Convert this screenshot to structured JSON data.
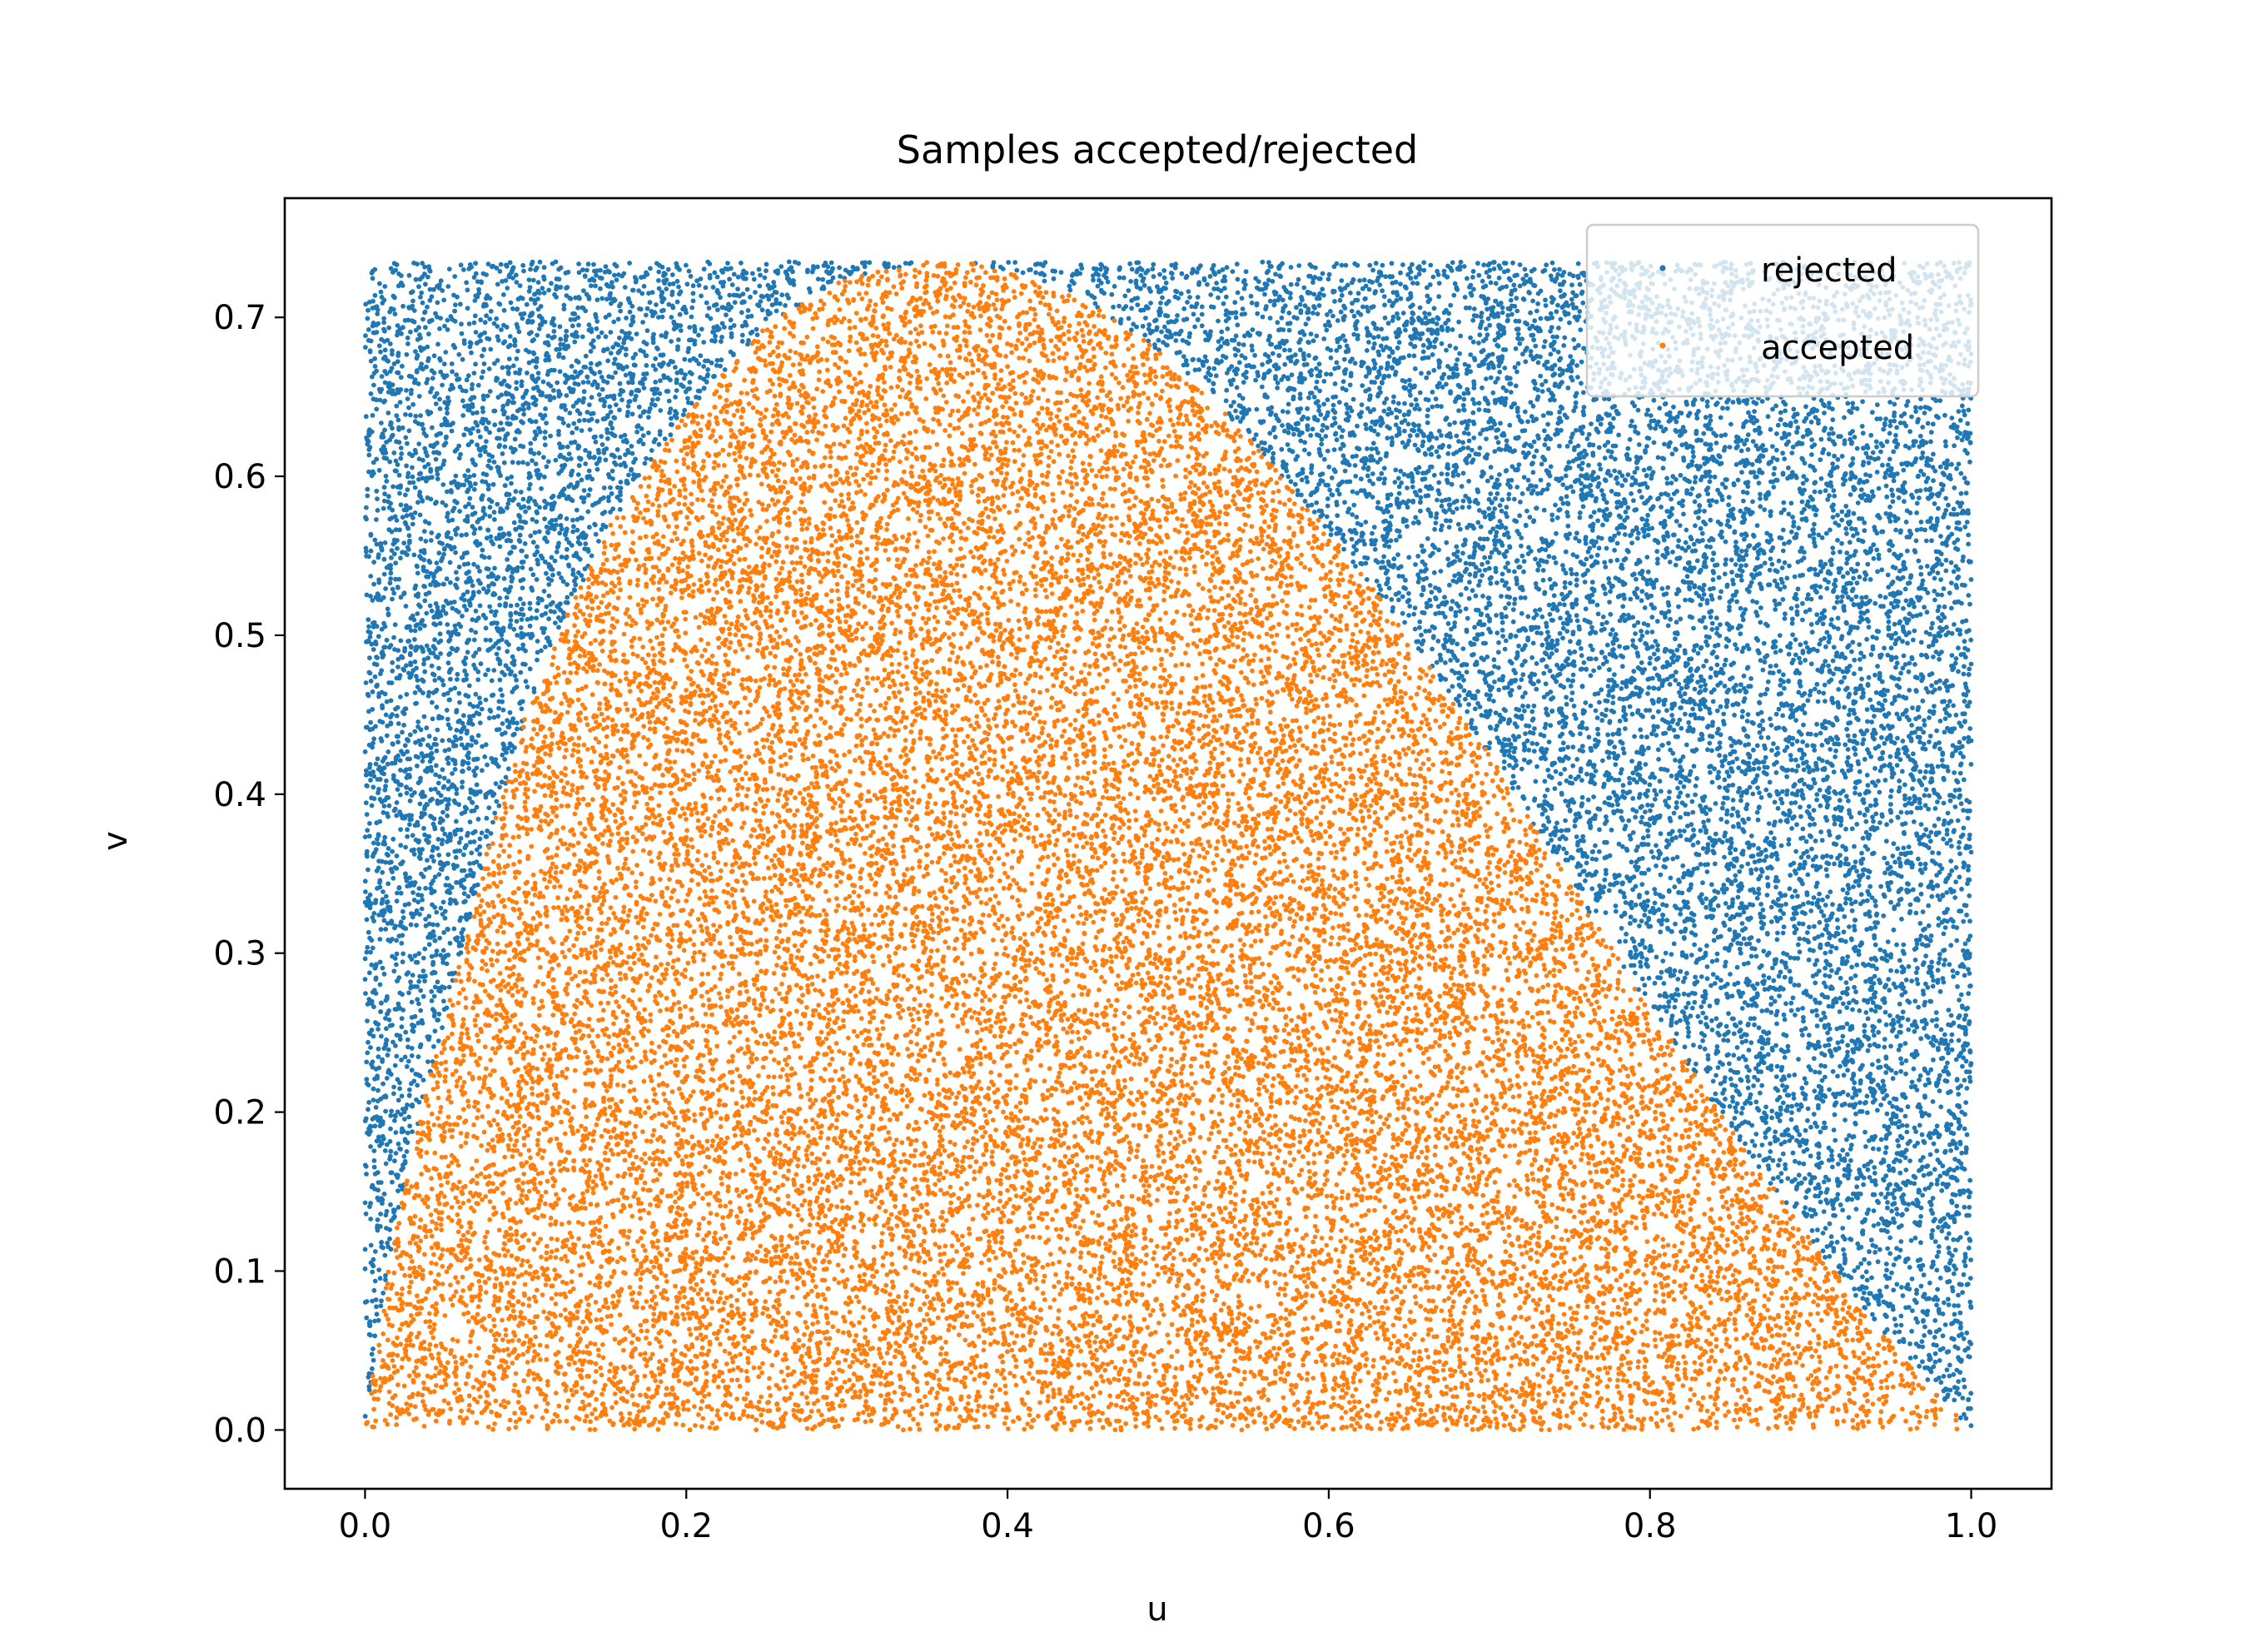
{
  "chart_data": {
    "type": "scatter",
    "title": "Samples accepted/rejected",
    "xlabel": "u",
    "ylabel": "v",
    "xlim": [
      -0.05,
      1.05
    ],
    "ylim": [
      -0.037,
      0.775
    ],
    "xticks": [
      0.0,
      0.2,
      0.4,
      0.6,
      0.8,
      1.0
    ],
    "xtick_labels": [
      "0.0",
      "0.2",
      "0.4",
      "0.6",
      "0.8",
      "1.0"
    ],
    "yticks": [
      0.0,
      0.1,
      0.2,
      0.3,
      0.4,
      0.5,
      0.6,
      0.7
    ],
    "ytick_labels": [
      "0.0",
      "0.1",
      "0.2",
      "0.3",
      "0.4",
      "0.5",
      "0.6",
      "0.7"
    ],
    "grid": false,
    "legend_position": "top-right",
    "sample_bounds": {
      "u": [
        0.0,
        1.0
      ],
      "v": [
        0.0,
        0.735
      ]
    },
    "acceptance_boundary": {
      "u": [
        0.0,
        0.01,
        0.02,
        0.04,
        0.06,
        0.08,
        0.1,
        0.12,
        0.15,
        0.2,
        0.25,
        0.3,
        0.35,
        0.37,
        0.4,
        0.45,
        0.5,
        0.55,
        0.6,
        0.65,
        0.7,
        0.75,
        0.8,
        0.85,
        0.9,
        0.95,
        0.98,
        1.0
      ],
      "v": [
        0.0,
        0.075,
        0.13,
        0.22,
        0.3,
        0.38,
        0.45,
        0.5,
        0.565,
        0.64,
        0.695,
        0.725,
        0.735,
        0.735,
        0.73,
        0.71,
        0.675,
        0.625,
        0.565,
        0.5,
        0.425,
        0.345,
        0.265,
        0.19,
        0.12,
        0.055,
        0.02,
        0.0
      ]
    },
    "series": [
      {
        "name": "rejected",
        "color": "#1f77b4",
        "region": "outside boundary"
      },
      {
        "name": "accepted",
        "color": "#ff7f0e",
        "region": "inside boundary"
      }
    ]
  }
}
